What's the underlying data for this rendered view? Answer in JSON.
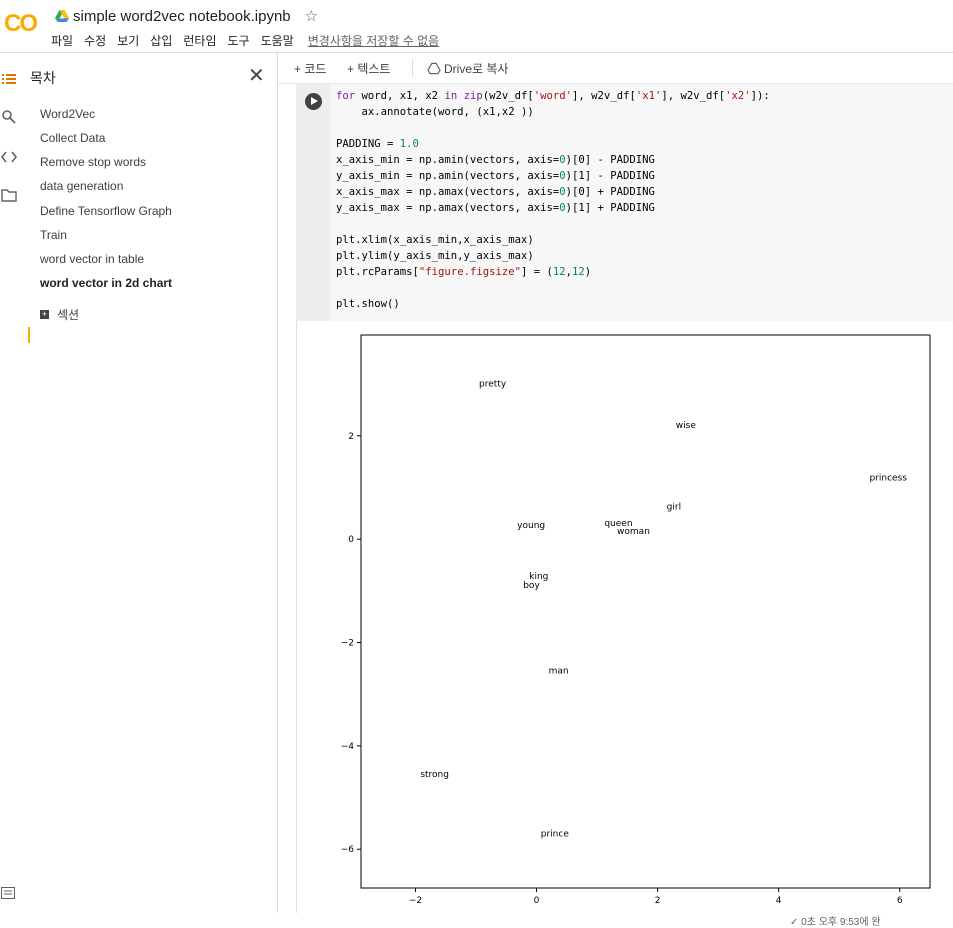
{
  "app": {
    "file_title": "simple word2vec notebook.ipynb",
    "logo_text": "CO",
    "star_glyph": "☆",
    "drive_icon": "drive-icon",
    "unsaved_notice": "변경사항을 저장할 수 없음"
  },
  "menu": [
    "파일",
    "수정",
    "보기",
    "삽입",
    "런타임",
    "도구",
    "도움말"
  ],
  "toc": {
    "title": "목차",
    "close_glyph": "✕",
    "items": [
      "Word2Vec",
      "Collect Data",
      "Remove stop words",
      "data generation",
      "Define Tensorflow Graph",
      "Train",
      "word vector in table",
      "word vector in 2d chart"
    ],
    "active_index": 7,
    "add_section_label": "섹션",
    "add_section_glyph": "+"
  },
  "toolbar": {
    "add_code": "+ 코드",
    "add_text": "+ 텍스트",
    "copy_to_drive": "Drive로 복사"
  },
  "code_lines": [
    "for word, x1, x2 in zip(w2v_df['word'], w2v_df['x1'], w2v_df['x2']):",
    "    ax.annotate(word, (x1,x2 ))",
    "",
    "PADDING = 1.0",
    "x_axis_min = np.amin(vectors, axis=0)[0] - PADDING",
    "y_axis_min = np.amin(vectors, axis=0)[1] - PADDING",
    "x_axis_max = np.amax(vectors, axis=0)[0] + PADDING",
    "y_axis_max = np.amax(vectors, axis=0)[1] + PADDING",
    "",
    "plt.xlim(x_axis_min,x_axis_max)",
    "plt.ylim(y_axis_min,y_axis_max)",
    "plt.rcParams[\"figure.figsize\"] = (12,12)",
    "",
    "plt.show()"
  ],
  "chart_data": {
    "type": "scatter",
    "title": "",
    "xlabel": "",
    "ylabel": "",
    "xlim": [
      -2.9,
      6.5
    ],
    "ylim": [
      -6.75,
      3.95
    ],
    "xticks": [
      -2,
      0,
      2,
      4,
      6
    ],
    "yticks": [
      2,
      0,
      -2,
      -4,
      -6
    ],
    "grid": false,
    "points": [
      {
        "label": "pretty",
        "x": -0.95,
        "y": 2.95
      },
      {
        "label": "wise",
        "x": 2.3,
        "y": 2.15
      },
      {
        "label": "princess",
        "x": 5.5,
        "y": 1.13
      },
      {
        "label": "girl",
        "x": 2.15,
        "y": 0.57
      },
      {
        "label": "young",
        "x": -0.32,
        "y": 0.22
      },
      {
        "label": "queen",
        "x": 1.12,
        "y": 0.25
      },
      {
        "label": "woman",
        "x": 1.33,
        "y": 0.1
      },
      {
        "label": "king",
        "x": -0.12,
        "y": -0.77
      },
      {
        "label": "boy",
        "x": -0.22,
        "y": -0.95
      },
      {
        "label": "man",
        "x": 0.2,
        "y": -2.6
      },
      {
        "label": "strong",
        "x": -1.92,
        "y": -4.6
      },
      {
        "label": "prince",
        "x": 0.07,
        "y": -5.75
      }
    ]
  },
  "status_bar": {
    "text": "✓ 0초   오후 9:53에 완"
  }
}
